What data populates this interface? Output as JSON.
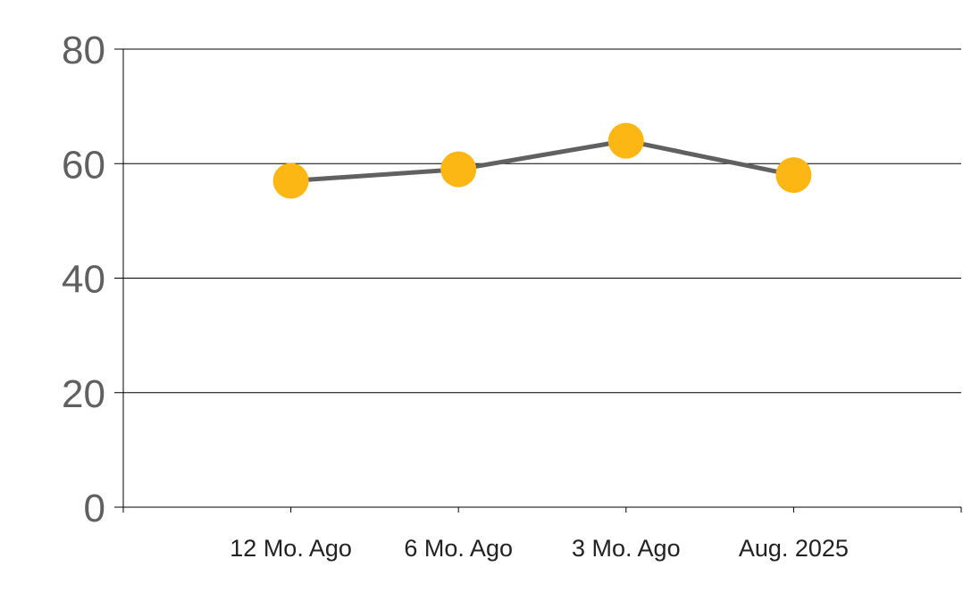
{
  "chart_data": {
    "type": "line",
    "categories": [
      "12 Mo. Ago",
      "6 Mo. Ago",
      "3 Mo. Ago",
      "Aug. 2025"
    ],
    "series": [
      {
        "values": [
          57,
          59,
          64,
          58
        ]
      }
    ],
    "title": "",
    "xlabel": "",
    "ylabel": "",
    "ylim": [
      0,
      80
    ],
    "yticks": [
      0,
      20,
      40,
      60,
      80
    ],
    "grid": true,
    "legend": "none",
    "colors": {
      "line": "#606060",
      "marker": "#FDB714",
      "grid": "#000000",
      "axis_text": "#606060",
      "category_text": "#222222"
    }
  }
}
